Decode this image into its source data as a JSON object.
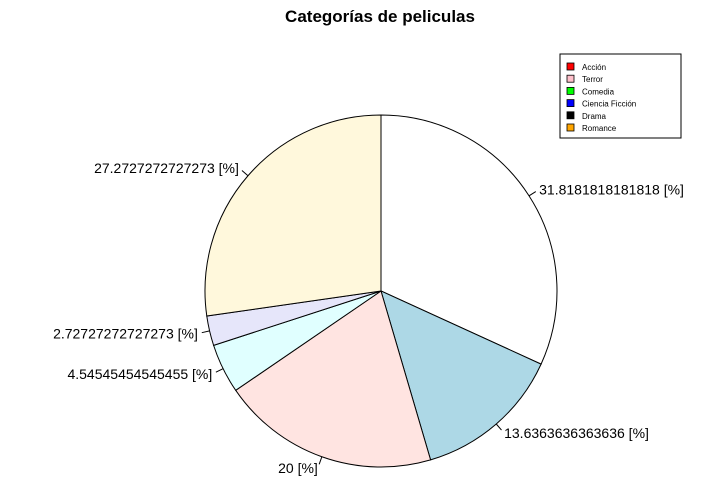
{
  "chart_data": {
    "type": "pie",
    "title": "Categorías de peliculas",
    "slices": [
      {
        "value": 31.8181818181818,
        "label": "31.8181818181818 [%]",
        "fill": "#ffffff"
      },
      {
        "value": 13.6363636363636,
        "label": "13.6363636363636 [%]",
        "fill": "#add8e6"
      },
      {
        "value": 20,
        "label": "20 [%]",
        "fill": "#ffe4e1"
      },
      {
        "value": 4.54545454545455,
        "label": "4.54545454545455 [%]",
        "fill": "#e0ffff"
      },
      {
        "value": 2.72727272727273,
        "label": "2.72727272727273 [%]",
        "fill": "#e6e6fa"
      },
      {
        "value": 27.2727272727273,
        "label": "27.2727272727273 [%]",
        "fill": "#fff8dc"
      }
    ],
    "legend": {
      "position": "top-right",
      "entries": [
        {
          "name": "Acción",
          "color": "#ff0000"
        },
        {
          "name": "Terror",
          "color": "#ffc0cb"
        },
        {
          "name": "Comedia",
          "color": "#00ff00"
        },
        {
          "name": "Ciencia Ficción",
          "color": "#0000ff"
        },
        {
          "name": "Drama",
          "color": "#000000"
        },
        {
          "name": "Romance",
          "color": "#ffa500"
        }
      ]
    }
  }
}
